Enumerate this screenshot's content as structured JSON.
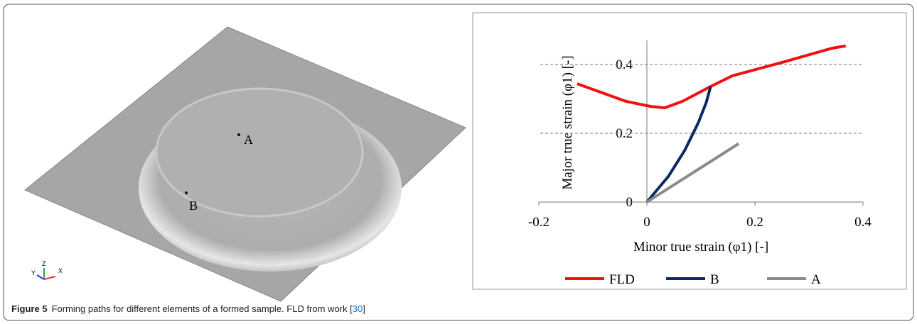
{
  "figure_image": {
    "points": [
      "A",
      "B"
    ],
    "axes": [
      "Y",
      "Z",
      "X"
    ]
  },
  "chart_data": {
    "type": "line",
    "xlabel": "Minor true strain (φ1) [-]",
    "ylabel": "Major true strain (φ1) [-]",
    "xlim": [
      -0.2,
      0.4
    ],
    "xticks": [
      -0.2,
      0,
      0.2,
      0.4
    ],
    "ylim": [
      0,
      0.47
    ],
    "yticks": [
      0,
      0.2,
      0.4
    ],
    "grid": true,
    "legend": "bottom",
    "series": [
      {
        "name": "FLD",
        "color": "#ee1111",
        "x": [
          -0.129,
          -0.039,
          0.007,
          0.033,
          0.066,
          0.118,
          0.158,
          0.25,
          0.342,
          0.368
        ],
        "values": [
          0.344,
          0.293,
          0.278,
          0.274,
          0.293,
          0.336,
          0.367,
          0.406,
          0.447,
          0.454
        ]
      },
      {
        "name": "B",
        "color": "#0b2a63",
        "x": [
          0,
          0.04,
          0.07,
          0.095,
          0.11,
          0.118
        ],
        "values": [
          0,
          0.075,
          0.15,
          0.23,
          0.29,
          0.336
        ]
      },
      {
        "name": "A",
        "color": "#8a8a8a",
        "x": [
          0,
          0.17
        ],
        "values": [
          0,
          0.17
        ]
      }
    ]
  },
  "caption": {
    "label": "Figure 5",
    "text_before": "Forming paths for different elements of a formed sample. FLD from work [",
    "ref": "30",
    "text_after": "]"
  }
}
